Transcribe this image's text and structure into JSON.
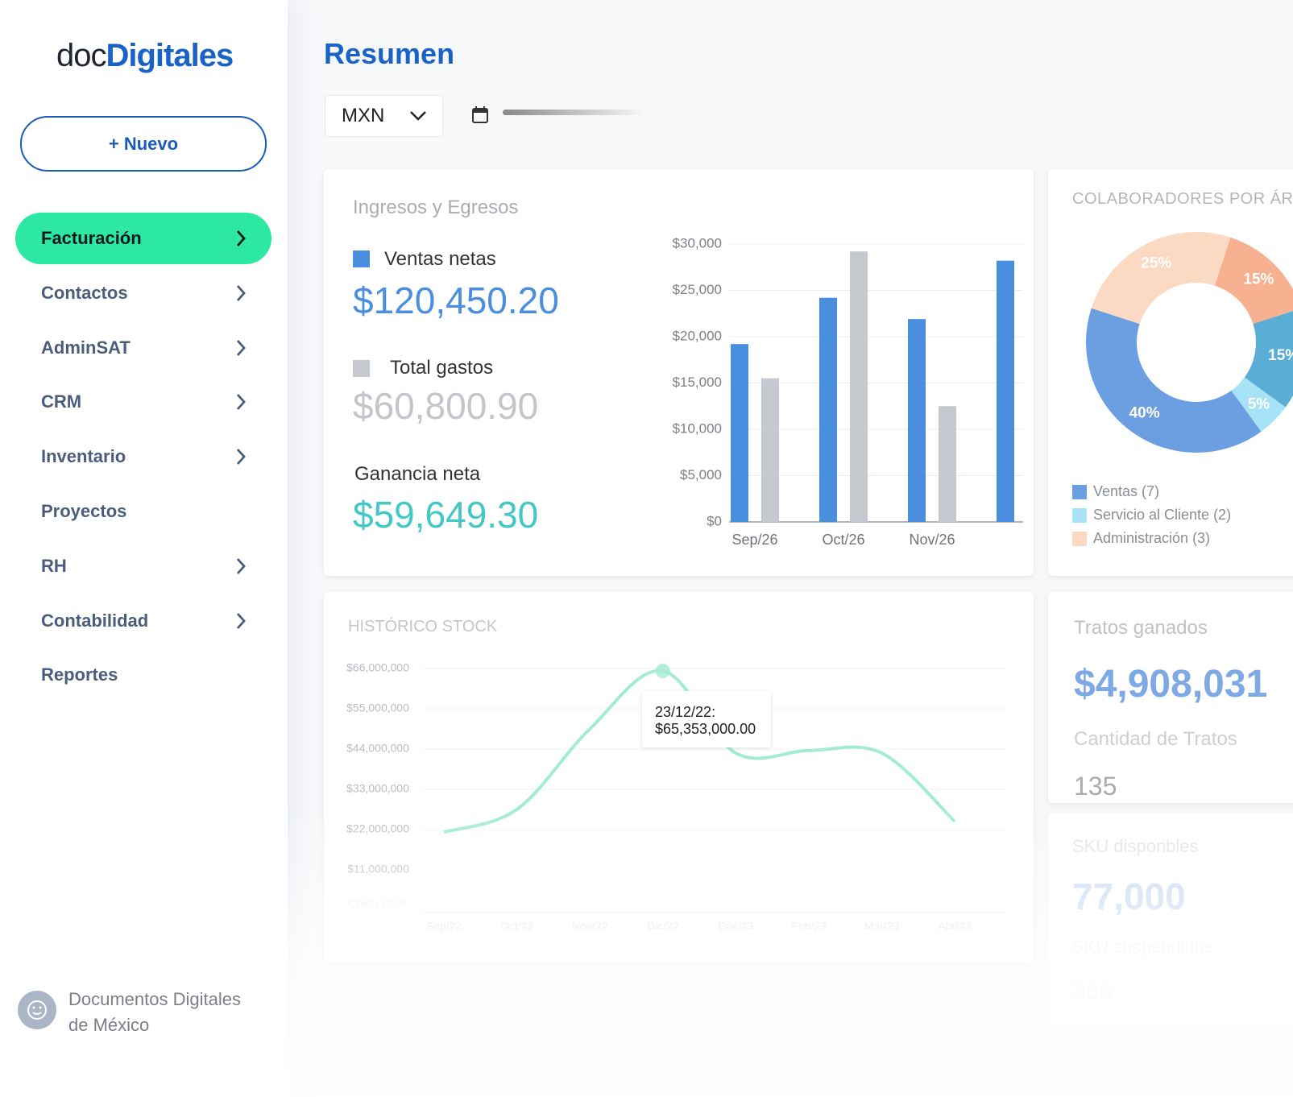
{
  "sidebar": {
    "logo_doc": "doc",
    "logo_digitales": "Digitales",
    "new_button": "+ Nuevo",
    "menu": [
      {
        "label": "Facturación",
        "active": true,
        "arrow": true
      },
      {
        "label": "Contactos",
        "active": false,
        "arrow": true
      },
      {
        "label": "AdminSAT",
        "active": false,
        "arrow": true
      },
      {
        "label": "CRM",
        "active": false,
        "arrow": true
      },
      {
        "label": "Inventario",
        "active": false,
        "arrow": true
      },
      {
        "label": "Proyectos",
        "active": false,
        "arrow": false
      },
      {
        "label": "RH",
        "active": false,
        "arrow": true
      },
      {
        "label": "Contabilidad",
        "active": false,
        "arrow": true
      },
      {
        "label": "Reportes",
        "active": false,
        "arrow": false
      }
    ],
    "company": [
      "Documentos Digitales",
      "de México"
    ]
  },
  "header": {
    "title": "Resumen",
    "currency": "MXN"
  },
  "income_card": {
    "title": "Ingresos y Egresos",
    "net": {
      "label": "Ganancia neta",
      "value": "$59,649.30"
    },
    "chart": {
      "type": "bar",
      "categories": [
        "Sep/26",
        "Oct/26",
        "Nov/26",
        null
      ],
      "series": [
        {
          "name": "Ventas netas",
          "total": "$120,450.20",
          "color": "#4a8ee0",
          "values": [
            19200,
            24200,
            21900,
            28200
          ]
        },
        {
          "name": "Total gastos",
          "total": "$60,800.90",
          "color": "#c5c8ce",
          "values": [
            15500,
            29200,
            12500,
            null
          ]
        }
      ],
      "ylim": [
        0,
        30000
      ],
      "yticks": [
        {
          "value": 0,
          "label": "$0"
        },
        {
          "value": 5000,
          "label": "$5,000"
        },
        {
          "value": 10000,
          "label": "$10,000"
        },
        {
          "value": 15000,
          "label": "$15,000"
        },
        {
          "value": 20000,
          "label": "$20,000"
        },
        {
          "value": 25000,
          "label": "$25,000"
        },
        {
          "value": 30000,
          "label": "$30,000"
        }
      ],
      "grid": true
    }
  },
  "collab_card": {
    "title": "COLABORADORES POR ÁREA",
    "chart": {
      "type": "pie",
      "categories": [
        "Ventas (7)",
        "Servicio al Cliente (2)",
        null,
        null,
        "Administración (3)"
      ],
      "values": [
        40,
        5,
        15,
        15,
        25
      ],
      "value_labels": [
        "40%",
        "5%",
        "15%",
        "15%",
        "25%"
      ],
      "colors": [
        "#6b9fe2",
        "#a6e3f7",
        "#5aaed6",
        "#f8b190",
        "#fbd9c2"
      ]
    }
  },
  "stock_card": {
    "title": "HISTÓRICO STOCK",
    "chart": {
      "type": "line",
      "y_label": "Costo stock",
      "categories": [
        "Sep/22",
        "Oct/22",
        "Nov/22",
        "Dic/22",
        "Ene/23",
        "Feb/23",
        "Mar/23",
        "Abr/23"
      ],
      "series": [
        {
          "name": "Costo stock",
          "color": "#a3ecd2",
          "values": [
            21300000,
            27500000,
            49500000,
            65353000,
            42900000,
            43600000,
            42900000,
            24200000
          ]
        }
      ],
      "ylim": [
        0,
        66000000
      ],
      "yticks": [
        {
          "value": 11000000,
          "label": "$11,000,000"
        },
        {
          "value": 22000000,
          "label": "$22,000,000"
        },
        {
          "value": 33000000,
          "label": "$33,000,000"
        },
        {
          "value": 44000000,
          "label": "$44,000,000"
        },
        {
          "value": 55000000,
          "label": "$55,000,000"
        },
        {
          "value": 66000000,
          "label": "$66,000,000"
        }
      ],
      "grid": true
    },
    "tooltip": {
      "date": "23/12/22:",
      "value": "$65,353,000.00"
    }
  },
  "deals_card": {
    "title": "Tratos ganados",
    "value": "$4,908,031",
    "count_label": "Cantidad de Tratos",
    "count": "135"
  },
  "sku_card": {
    "available_label": "SKU disponbles",
    "available": "77,000",
    "suspended_label": "SKU suspendidos",
    "suspended": "366"
  }
}
